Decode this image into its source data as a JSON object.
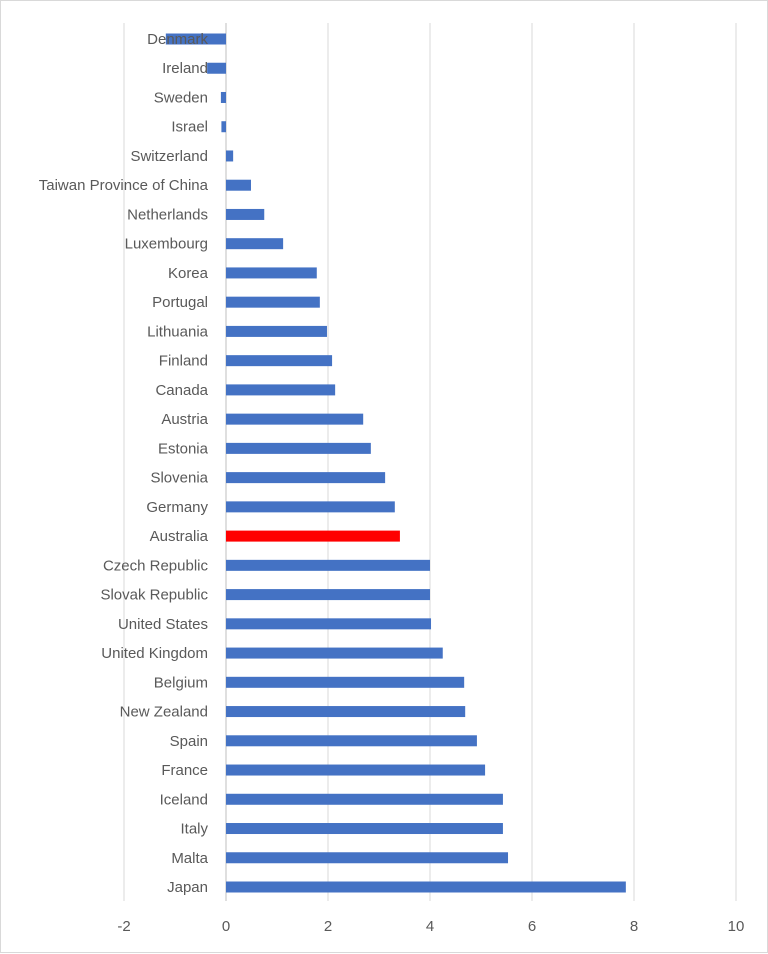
{
  "chart_data": {
    "type": "bar",
    "orientation": "horizontal",
    "categories": [
      "Denmark",
      "Ireland",
      "Sweden",
      "Israel",
      "Switzerland",
      "Taiwan Province of China",
      "Netherlands",
      "Luxembourg",
      "Korea",
      "Portugal",
      "Lithuania",
      "Finland",
      "Canada",
      "Austria",
      "Estonia",
      "Slovenia",
      "Germany",
      "Australia",
      "Czech Republic",
      "Slovak Republic",
      "United States",
      "United Kingdom",
      "Belgium",
      "New Zealand",
      "Spain",
      "France",
      "Iceland",
      "Italy",
      "Malta",
      "Japan"
    ],
    "values": [
      -1.18,
      -0.37,
      -0.1,
      -0.09,
      0.14,
      0.49,
      0.75,
      1.12,
      1.78,
      1.84,
      1.98,
      2.08,
      2.14,
      2.69,
      2.84,
      3.12,
      3.31,
      3.41,
      4.0,
      4.0,
      4.02,
      4.25,
      4.67,
      4.69,
      4.92,
      5.08,
      5.43,
      5.43,
      5.53,
      7.84
    ],
    "highlight": "Australia",
    "colors": {
      "default": "#4472C4",
      "highlight": "#FF0000",
      "grid": "#D9D9D9"
    },
    "xlim": [
      -2,
      10
    ],
    "xticks": [
      "-2",
      "0",
      "2",
      "4",
      "6",
      "8",
      "10"
    ],
    "grid": "vertical",
    "title": "",
    "xlabel": "",
    "ylabel": ""
  }
}
